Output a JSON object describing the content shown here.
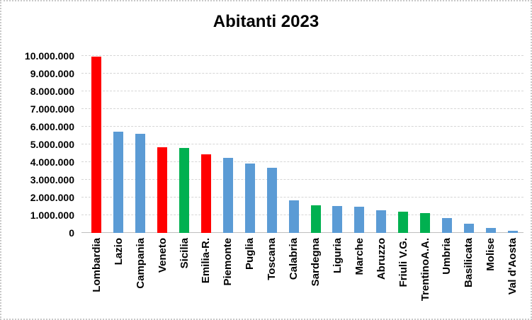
{
  "window": {
    "background_color": "#ffffff",
    "border_color": "#c9c9c9"
  },
  "chart_data": {
    "type": "bar",
    "title": "Abitanti 2023",
    "xlabel": "",
    "ylabel": "",
    "categories": [
      "Lombardia",
      "Lazio",
      "Campania",
      "Veneto",
      "Sicilia",
      "Emilia-R.",
      "Piemonte",
      "Puglia",
      "Toscana",
      "Calabria",
      "Sardegna",
      "Liguria",
      "Marche",
      "Abruzzo",
      "Friuli V.G.",
      "TrentinoA.A.",
      "Umbria",
      "Basilicata",
      "Molise",
      "Val d'Aosta"
    ],
    "values": [
      9950000,
      5715000,
      5590000,
      4850000,
      4800000,
      4435000,
      4250000,
      3900000,
      3660000,
      1840000,
      1575000,
      1510000,
      1485000,
      1275000,
      1195000,
      1100000,
      855000,
      535000,
      290000,
      125000
    ],
    "bar_colors": [
      "#FF0000",
      "#5B9BD5",
      "#5B9BD5",
      "#FF0000",
      "#00B050",
      "#FF0000",
      "#5B9BD5",
      "#5B9BD5",
      "#5B9BD5",
      "#5B9BD5",
      "#00B050",
      "#5B9BD5",
      "#5B9BD5",
      "#5B9BD5",
      "#00B050",
      "#00B050",
      "#5B9BD5",
      "#5B9BD5",
      "#5B9BD5",
      "#5B9BD5"
    ],
    "palette": {
      "red": "#FF0000",
      "blue": "#5B9BD5",
      "green": "#00B050"
    },
    "y_ticks": [
      "10.000.000",
      "9.000.000",
      "8.000.000",
      "7.000.000",
      "6.000.000",
      "5.000.000",
      "4.000.000",
      "3.000.000",
      "2.000.000",
      "1.000.000",
      "0"
    ],
    "ylim": [
      0,
      10000000
    ],
    "grid": "horizontal-dashed",
    "gridline_color": "#d6d6d6",
    "axis_line_color": "#bfbfbf",
    "legend": "none"
  }
}
